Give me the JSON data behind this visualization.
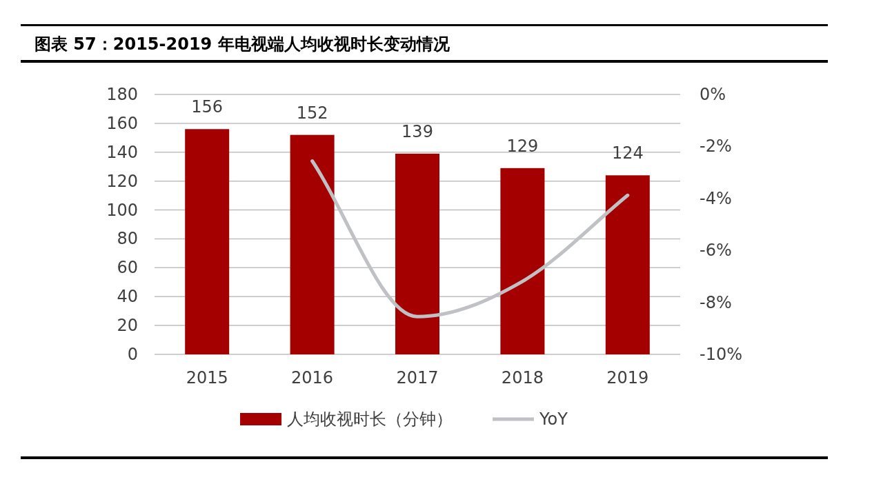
{
  "chart_data": {
    "type": "bar",
    "title": "图表 57：2015-2019 年电视端人均收视时长变动情况",
    "categories": [
      "2015",
      "2016",
      "2017",
      "2018",
      "2019"
    ],
    "series": [
      {
        "name": "人均收视时长（分钟）",
        "color": "#a50000",
        "values": [
          156,
          152,
          139,
          129,
          124
        ],
        "value_labels": [
          "156",
          "152",
          "139",
          "129",
          "124"
        ]
      },
      {
        "name": "YoY",
        "type": "line",
        "axis": "y2",
        "color": "#bfc1c4",
        "values": [
          null,
          -2.56,
          -8.55,
          -7.19,
          -3.88
        ]
      }
    ],
    "ylim": [
      0,
      180
    ],
    "yticks": [
      0,
      20,
      40,
      60,
      80,
      100,
      120,
      140,
      160,
      180
    ],
    "y2lim": [
      -10,
      0
    ],
    "y2ticks": [
      {
        "value": -10,
        "label": "-10%"
      },
      {
        "value": -8,
        "label": "-8%"
      },
      {
        "value": -6,
        "label": "-6%"
      },
      {
        "value": -4,
        "label": "-4%"
      },
      {
        "value": -2,
        "label": "-2%"
      },
      {
        "value": 0,
        "label": "0%"
      }
    ],
    "grid": "y",
    "legend": "bottom"
  }
}
